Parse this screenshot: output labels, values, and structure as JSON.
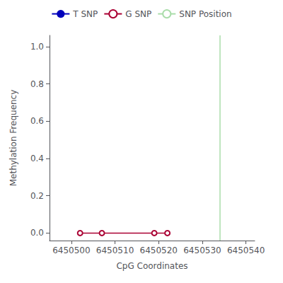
{
  "chart_data": {
    "type": "line",
    "xlabel": "CpG Coordinates",
    "ylabel": "Methylation Frequency",
    "xlim": [
      6450495,
      6450542
    ],
    "ylim": [
      -0.04,
      1.06
    ],
    "xticks": [
      6450500,
      6450510,
      6450520,
      6450530,
      6450540
    ],
    "yticks": [
      {
        "value": 0.0,
        "label": "0.0"
      },
      0.2,
      0.4,
      0.6,
      0.8,
      {
        "value": 1.0,
        "label": "1.0"
      }
    ],
    "grid": false,
    "legend": "top",
    "series": [
      {
        "name": "T SNP",
        "type": "line",
        "color": "#0000bb",
        "x": [],
        "values": []
      },
      {
        "name": "G SNP",
        "type": "line",
        "color": "#aa0033",
        "marker": "circle",
        "x": [
          6450502,
          6450507,
          6450519,
          6450522
        ],
        "values": [
          0.0,
          0.0,
          0.0,
          0.0
        ]
      },
      {
        "name": "SNP Position",
        "type": "vline",
        "color": "#aaddaa",
        "x": [
          6450534
        ]
      }
    ]
  }
}
